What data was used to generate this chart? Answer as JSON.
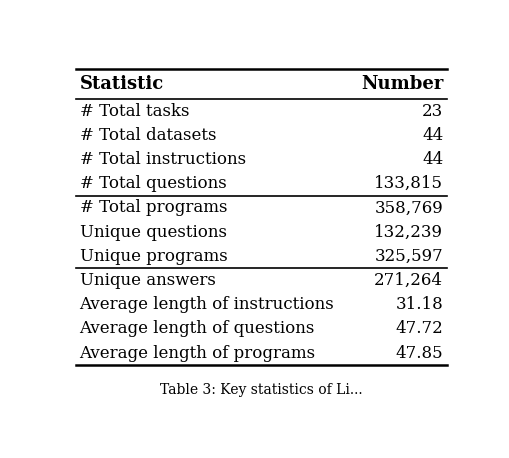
{
  "col_headers": [
    "Statistic",
    "Number"
  ],
  "rows": [
    [
      "# Total tasks",
      "23"
    ],
    [
      "# Total datasets",
      "44"
    ],
    [
      "# Total instructions",
      "44"
    ],
    [
      "# Total questions",
      "133,815"
    ],
    [
      "# Total programs",
      "358,769"
    ],
    [
      "Unique questions",
      "132,239"
    ],
    [
      "Unique programs",
      "325,597"
    ],
    [
      "Unique answers",
      "271,264"
    ],
    [
      "Average length of instructions",
      "31.18"
    ],
    [
      "Average length of questions",
      "47.72"
    ],
    [
      "Average length of programs",
      "47.85"
    ]
  ],
  "section_breaks_after": [
    4,
    7
  ],
  "background_color": "#ffffff",
  "text_color": "#000000",
  "header_fontsize": 13,
  "row_fontsize": 12
}
